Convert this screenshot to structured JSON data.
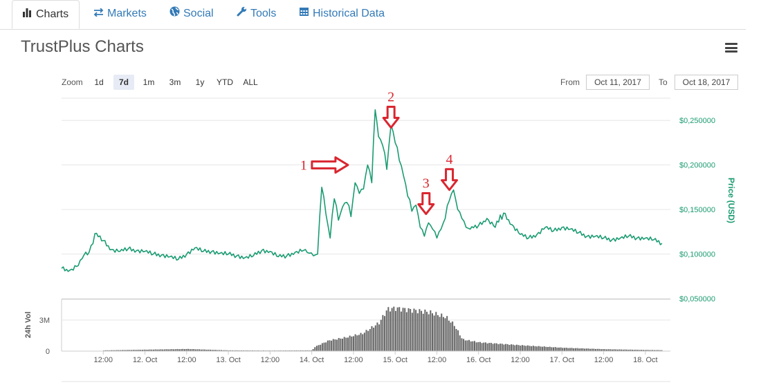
{
  "tabs": [
    {
      "label": "Charts",
      "icon": "bar-chart-icon",
      "active": true
    },
    {
      "label": "Markets",
      "icon": "exchange-icon",
      "active": false
    },
    {
      "label": "Social",
      "icon": "globe-icon",
      "active": false
    },
    {
      "label": "Tools",
      "icon": "wrench-icon",
      "active": false
    },
    {
      "label": "Historical Data",
      "icon": "calendar-icon",
      "active": false
    }
  ],
  "title": "TrustPlus Charts",
  "menu_icon": "hamburger-menu-icon",
  "zoom": {
    "label": "Zoom",
    "options": [
      "1d",
      "7d",
      "1m",
      "3m",
      "1y",
      "YTD",
      "ALL"
    ],
    "selected": "7d"
  },
  "range": {
    "from_label": "From",
    "from_value": "Oct 11, 2017",
    "to_label": "To",
    "to_value": "Oct 18, 2017"
  },
  "colors": {
    "price_line": "#1a9b72",
    "volume_bar": "#666666",
    "annotation": "#d9262f",
    "axis_label": "#1a9b72"
  },
  "chart_data": [
    {
      "type": "line",
      "title": "",
      "ylabel": "Price (USD)",
      "ylim": [
        0.05,
        0.275
      ],
      "yticks": [
        0.05,
        0.1,
        0.15,
        0.2,
        0.25
      ],
      "ytick_labels": [
        "$0,050000",
        "$0,100000",
        "$0,150000",
        "$0,200000",
        "$0,250000"
      ],
      "xlim": [
        0,
        7.3
      ],
      "x_tick_positions": [
        0.5,
        1,
        1.5,
        2,
        2.5,
        3,
        3.5,
        4,
        4.5,
        5,
        5.5,
        6,
        6.5,
        7
      ],
      "x_tick_labels": [
        "12:00",
        "12. Oct",
        "12:00",
        "13. Oct",
        "12:00",
        "14. Oct",
        "12:00",
        "15. Oct",
        "12:00",
        "16. Oct",
        "12:00",
        "17. Oct",
        "12:00",
        "18. Oct"
      ],
      "x_unit": "days from Oct 11, 2017 00:00",
      "x": [
        0.0,
        0.1,
        0.2,
        0.27,
        0.33,
        0.4,
        0.5,
        0.6,
        0.7,
        0.8,
        0.9,
        1.0,
        1.1,
        1.2,
        1.3,
        1.4,
        1.5,
        1.6,
        1.7,
        1.8,
        1.9,
        2.0,
        2.1,
        2.2,
        2.3,
        2.4,
        2.5,
        2.6,
        2.7,
        2.8,
        2.9,
        2.97,
        3.02,
        3.07,
        3.12,
        3.17,
        3.22,
        3.27,
        3.32,
        3.37,
        3.42,
        3.47,
        3.52,
        3.57,
        3.62,
        3.67,
        3.72,
        3.76,
        3.8,
        3.85,
        3.9,
        3.95,
        4.0,
        4.05,
        4.1,
        4.15,
        4.2,
        4.25,
        4.3,
        4.35,
        4.4,
        4.45,
        4.5,
        4.55,
        4.6,
        4.65,
        4.7,
        4.75,
        4.8,
        4.85,
        4.9,
        5.0,
        5.1,
        5.2,
        5.3,
        5.4,
        5.5,
        5.6,
        5.7,
        5.8,
        5.9,
        6.0,
        6.1,
        6.2,
        6.3,
        6.4,
        6.5,
        6.6,
        6.7,
        6.8,
        6.9,
        7.0,
        7.1,
        7.2
      ],
      "series": [
        {
          "values": [
            0.084,
            0.082,
            0.087,
            0.099,
            0.102,
            0.123,
            0.115,
            0.105,
            0.103,
            0.106,
            0.104,
            0.103,
            0.1,
            0.099,
            0.097,
            0.094,
            0.1,
            0.107,
            0.103,
            0.103,
            0.101,
            0.1,
            0.098,
            0.096,
            0.098,
            0.104,
            0.103,
            0.097,
            0.098,
            0.102,
            0.104,
            0.101,
            0.098,
            0.1,
            0.175,
            0.145,
            0.118,
            0.162,
            0.138,
            0.153,
            0.158,
            0.142,
            0.18,
            0.168,
            0.173,
            0.2,
            0.18,
            0.262,
            0.232,
            0.222,
            0.195,
            0.245,
            0.225,
            0.205,
            0.188,
            0.165,
            0.148,
            0.155,
            0.13,
            0.12,
            0.135,
            0.128,
            0.118,
            0.128,
            0.14,
            0.16,
            0.172,
            0.15,
            0.14,
            0.13,
            0.128,
            0.132,
            0.14,
            0.13,
            0.146,
            0.133,
            0.122,
            0.118,
            0.122,
            0.13,
            0.126,
            0.13,
            0.128,
            0.124,
            0.12,
            0.12,
            0.118,
            0.116,
            0.118,
            0.12,
            0.118,
            0.118,
            0.116,
            0.112
          ]
        }
      ],
      "annotations": [
        {
          "label": "1",
          "x": 3.45,
          "y": 0.2,
          "direction": "right"
        },
        {
          "label": "2",
          "x": 3.95,
          "y": 0.242,
          "direction": "down"
        },
        {
          "label": "3",
          "x": 4.37,
          "y": 0.145,
          "direction": "down"
        },
        {
          "label": "4",
          "x": 4.65,
          "y": 0.172,
          "direction": "down"
        }
      ]
    },
    {
      "type": "bar",
      "title": "",
      "ylabel": "24h Vol",
      "ylim": [
        0,
        5000000
      ],
      "yticks": [
        0,
        3000000
      ],
      "ytick_labels": [
        "0",
        "3M"
      ],
      "x_unit": "days from Oct 11, 2017 00:00",
      "x": [
        0.5,
        1.0,
        1.5,
        2.0,
        2.5,
        3.0,
        3.02,
        3.2,
        3.4,
        3.6,
        3.8,
        3.9,
        4.0,
        4.2,
        4.4,
        4.6,
        4.7,
        4.8,
        5.0,
        5.5,
        6.0,
        6.5,
        7.0,
        7.2
      ],
      "series": [
        {
          "values": [
            80000,
            150000,
            220000,
            80000,
            60000,
            80000,
            400000,
            1100000,
            1400000,
            1800000,
            2900000,
            4300000,
            4400000,
            4200000,
            4000000,
            3500000,
            2700000,
            1200000,
            900000,
            600000,
            350000,
            200000,
            120000,
            100000
          ]
        }
      ]
    }
  ]
}
